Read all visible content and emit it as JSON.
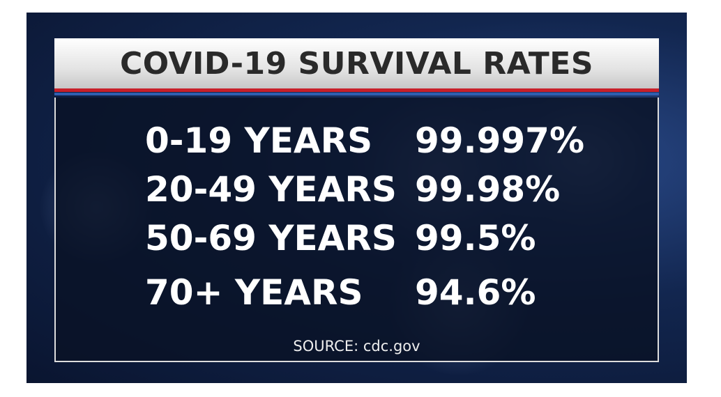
{
  "header": {
    "title": "COVID-19 SURVIVAL RATES"
  },
  "table": {
    "rows": [
      [
        "0-19 YEARS",
        "99.997%"
      ],
      [
        "20-49 YEARS",
        "99.98%"
      ],
      [
        "50-69 YEARS",
        "99.5%"
      ],
      [
        "70+ YEARS",
        "94.6%"
      ]
    ]
  },
  "footer": {
    "source": "SOURCE: cdc.gov"
  }
}
